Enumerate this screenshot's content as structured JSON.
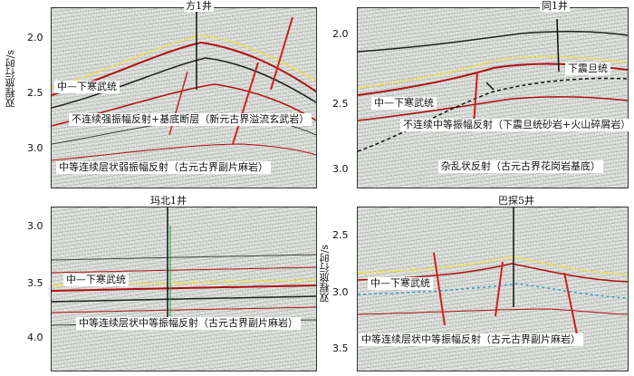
{
  "panels": [
    {
      "well": "方1井",
      "y_axis_label": "双程旅行时/s",
      "ticks": [
        "2.0",
        "2.5",
        "3.0"
      ],
      "labels": [
        "中—下寒武统",
        "不连续强振幅反射+基底断层（新元古界溢流玄武岩）",
        "中等连续层状弱振幅反射（古元古界副片麻岩）"
      ]
    },
    {
      "well": "同1井",
      "y_axis_label": "",
      "ticks": [
        "2.0",
        "2.5",
        "3.0"
      ],
      "labels": [
        "下震旦统",
        "中—下寒武统",
        "不连续中等振幅反射（下震旦统砂岩+火山碎屑岩）",
        "杂乱状反射（古元古界花岗岩基底）"
      ]
    },
    {
      "well": "玛北1井",
      "y_axis_label": "",
      "ticks": [
        "3.0",
        "3.5",
        "4.0"
      ],
      "labels": [
        "中—下寒武统",
        "中等连续层状中等振幅反射（古元古界副片麻岩）"
      ]
    },
    {
      "well": "巴探5井",
      "y_axis_label": "双程旅行时/s",
      "ticks": [
        "2.5",
        "3.0",
        "3.5"
      ],
      "labels": [
        "中—下寒武统",
        "中等连续层状中等振幅反射（古元古界副片麻岩）"
      ]
    }
  ]
}
